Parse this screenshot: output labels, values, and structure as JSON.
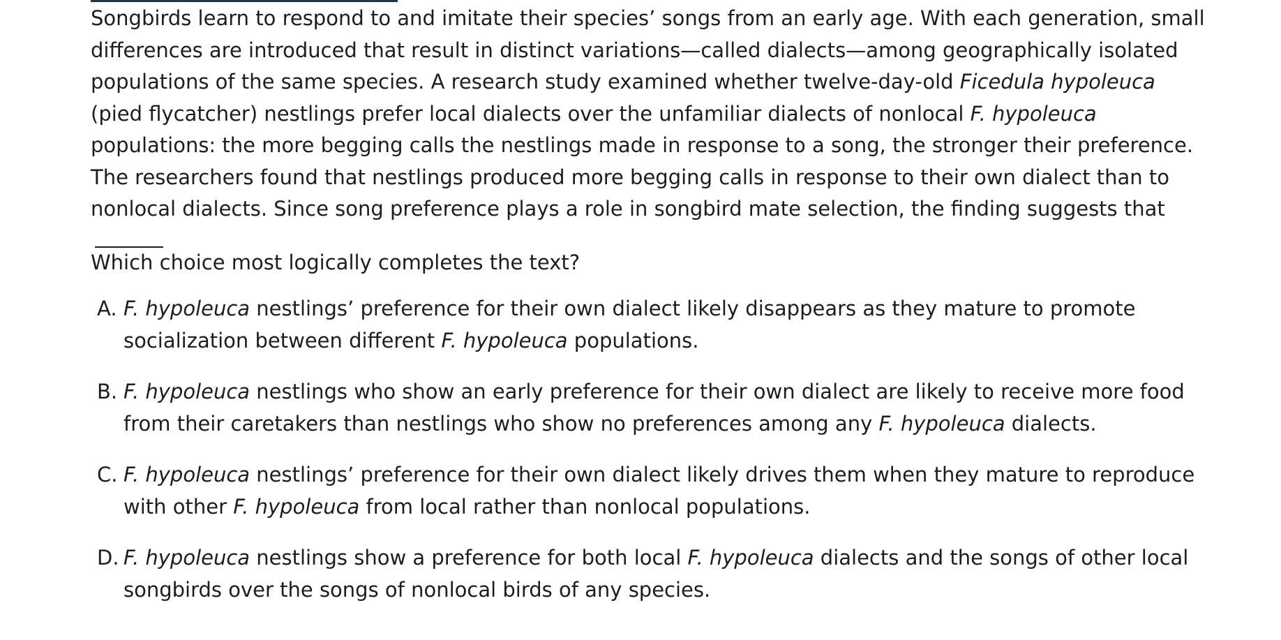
{
  "passage": {
    "s1": "Songbirds learn to respond to and imitate their species’ songs from an early age. With each generation, small differences are introduced that result in distinct variations—called dialects—among geographically isolated populations of the same species. A research study examined whether twelve-day-old ",
    "species_full": "Ficedula hypoleuca",
    "s2": " (pied flycatcher) nestlings prefer local dialects over the unfamiliar dialects of nonlocal ",
    "species_short": "F. hypoleuca",
    "s3": " populations: the more begging calls the nestlings made in response to a song, the stronger their preference. The researchers found that nestlings produced more begging calls in response to their own dialect than to nonlocal dialects. Since song preference plays a role in songbird mate selection, the finding suggests that"
  },
  "question": "Which choice most logically completes the text?",
  "choices": [
    {
      "letter": "A.",
      "i1": "F. hypoleuca",
      "t1": " nestlings’ preference for their own dialect likely disappears as they mature to promote socialization between different ",
      "i2": "F. hypoleuca",
      "t2": " populations."
    },
    {
      "letter": "B.",
      "i1": "F. hypoleuca",
      "t1": " nestlings who show an early preference for their own dialect are likely to receive more food from their caretakers than nestlings who show no preferences among any ",
      "i2": "F. hypoleuca",
      "t2": " dialects."
    },
    {
      "letter": "C.",
      "i1": "F. hypoleuca",
      "t1": " nestlings’ preference for their own dialect likely drives them when they mature to reproduce with other ",
      "i2": "F. hypoleuca",
      "t2": " from local rather than nonlocal populations."
    },
    {
      "letter": "D.",
      "i1": "F. hypoleuca",
      "t1": " nestlings show a preference for both local ",
      "i2": "F. hypoleuca",
      "t2": " dialects and the songs of other local songbirds over the songs of nonlocal birds of any species."
    }
  ]
}
